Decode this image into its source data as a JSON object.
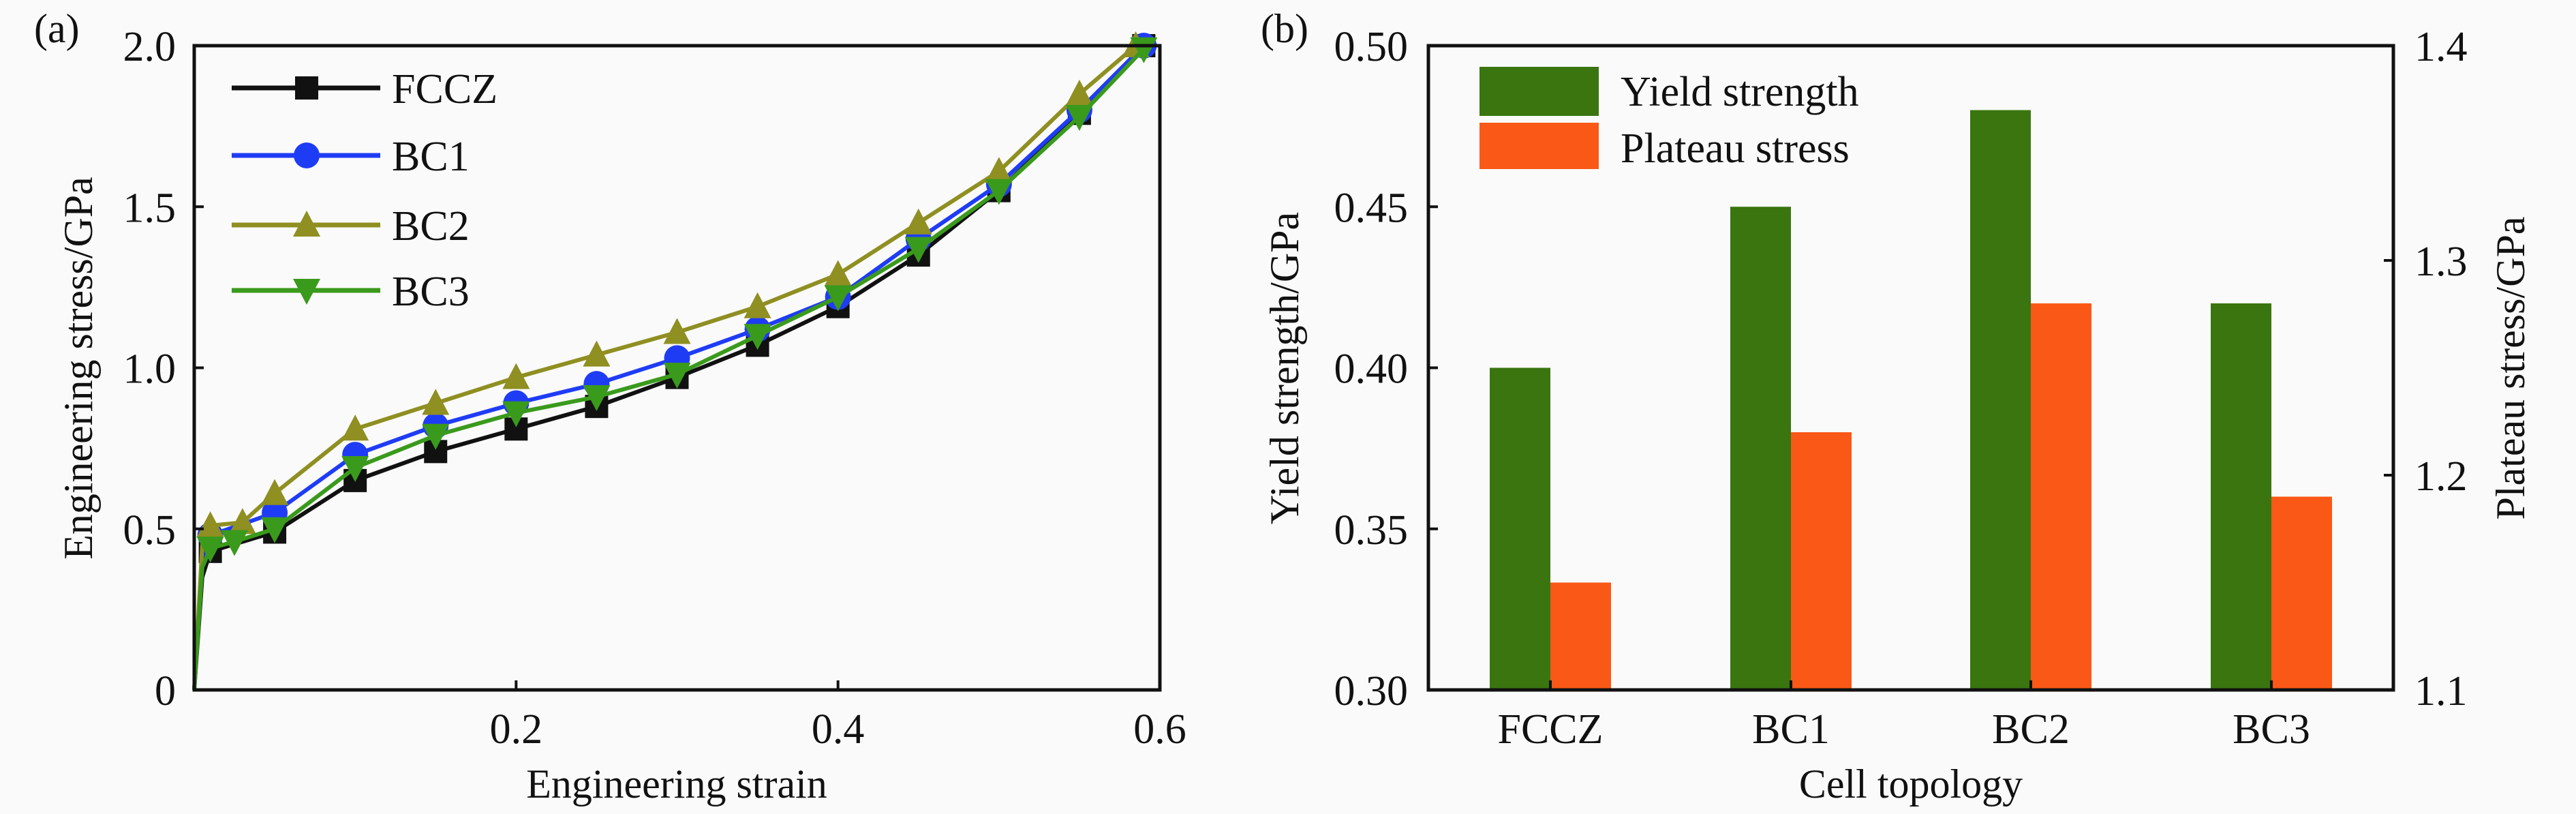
{
  "chart_data": [
    {
      "type": "line",
      "panel_label": "(a)",
      "xlabel": "Engineering strain",
      "ylabel": "Engineering stress/GPa",
      "xlim": [
        0,
        0.6
      ],
      "ylim": [
        0,
        2.0
      ],
      "xticks": [
        "0.2",
        "0.4",
        "0.6"
      ],
      "xtick_values": [
        0.2,
        0.4,
        0.6
      ],
      "yticks": [
        "0",
        "0.5",
        "1.0",
        "1.5",
        "2.0"
      ],
      "ytick_values": [
        0,
        0.5,
        1.0,
        1.5,
        2.0
      ],
      "legend_position": "top-left",
      "grid": false,
      "series": [
        {
          "name": "FCCZ",
          "color": "#111111",
          "marker": "square",
          "x": [
            0,
            0.005,
            0.01,
            0.05,
            0.1,
            0.15,
            0.2,
            0.25,
            0.3,
            0.35,
            0.4,
            0.45,
            0.5,
            0.55,
            0.59
          ],
          "y": [
            0,
            0.35,
            0.43,
            0.49,
            0.65,
            0.74,
            0.81,
            0.88,
            0.97,
            1.07,
            1.19,
            1.35,
            1.55,
            1.79,
            2.0
          ]
        },
        {
          "name": "BC1",
          "color": "#1f3cf5",
          "marker": "circle",
          "x": [
            0,
            0.005,
            0.01,
            0.05,
            0.1,
            0.15,
            0.2,
            0.25,
            0.3,
            0.35,
            0.4,
            0.45,
            0.5,
            0.55,
            0.59
          ],
          "y": [
            0,
            0.4,
            0.48,
            0.55,
            0.73,
            0.82,
            0.89,
            0.95,
            1.03,
            1.12,
            1.22,
            1.4,
            1.57,
            1.8,
            2.0
          ]
        },
        {
          "name": "BC2",
          "color": "#8f8f22",
          "marker": "triangle-up",
          "x": [
            0,
            0.005,
            0.01,
            0.03,
            0.05,
            0.1,
            0.15,
            0.2,
            0.25,
            0.3,
            0.35,
            0.4,
            0.45,
            0.5,
            0.55,
            0.585
          ],
          "y": [
            0,
            0.45,
            0.51,
            0.52,
            0.61,
            0.81,
            0.89,
            0.97,
            1.04,
            1.11,
            1.19,
            1.29,
            1.45,
            1.61,
            1.85,
            2.0
          ]
        },
        {
          "name": "BC3",
          "color": "#3a9a1c",
          "marker": "triangle-down",
          "x": [
            0,
            0.005,
            0.01,
            0.025,
            0.05,
            0.1,
            0.15,
            0.2,
            0.25,
            0.3,
            0.35,
            0.4,
            0.45,
            0.5,
            0.55,
            0.59
          ],
          "y": [
            0,
            0.38,
            0.44,
            0.46,
            0.5,
            0.69,
            0.79,
            0.86,
            0.91,
            0.98,
            1.1,
            1.22,
            1.37,
            1.55,
            1.78,
            1.99
          ]
        }
      ]
    },
    {
      "type": "bar",
      "panel_label": "(b)",
      "xlabel": "Cell topology",
      "ylabel": "Yield strength/GPa",
      "ylabel_right": "Plateau stress/GPa",
      "categories": [
        "FCCZ",
        "BC1",
        "BC2",
        "BC3"
      ],
      "ylim": [
        0.3,
        0.5
      ],
      "ylim_right": [
        1.1,
        1.4
      ],
      "yticks": [
        "0.30",
        "0.35",
        "0.40",
        "0.45",
        "0.50"
      ],
      "ytick_values": [
        0.3,
        0.35,
        0.4,
        0.45,
        0.5
      ],
      "yticks_right": [
        "1.1",
        "1.2",
        "1.3",
        "1.4"
      ],
      "ytick_values_right": [
        1.1,
        1.2,
        1.3,
        1.4
      ],
      "legend_position": "top-left",
      "series": [
        {
          "name": "Yield strength",
          "axis": "left",
          "color": "#3a7510",
          "values": [
            0.4,
            0.45,
            0.48,
            0.42
          ]
        },
        {
          "name": "Plateau stress",
          "axis": "right",
          "color": "#fa5816",
          "values": [
            1.15,
            1.22,
            1.28,
            1.19
          ]
        }
      ]
    }
  ]
}
